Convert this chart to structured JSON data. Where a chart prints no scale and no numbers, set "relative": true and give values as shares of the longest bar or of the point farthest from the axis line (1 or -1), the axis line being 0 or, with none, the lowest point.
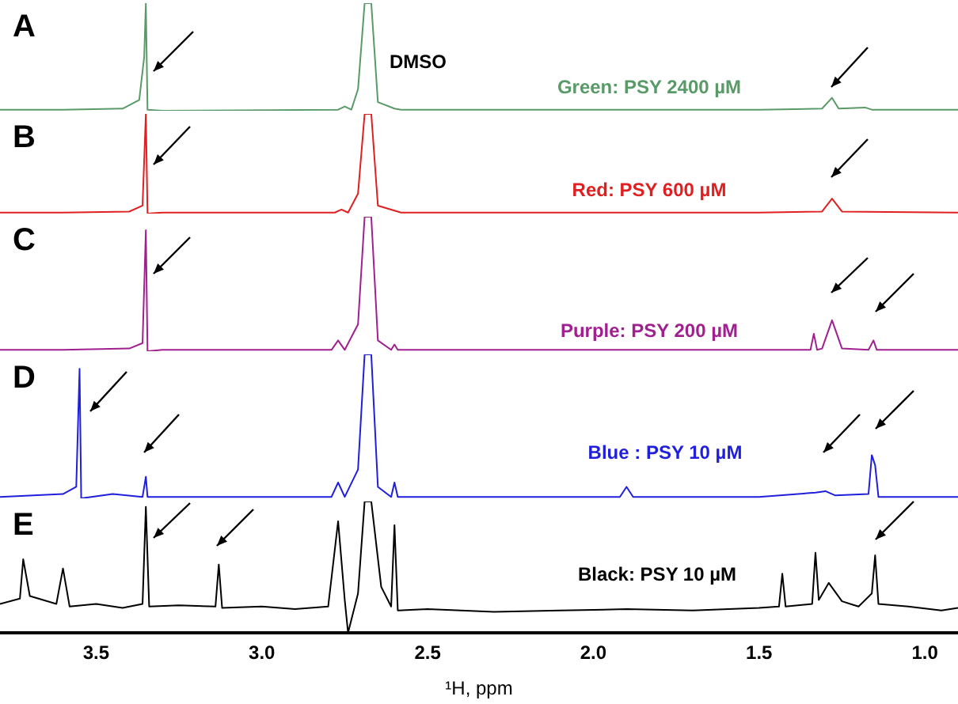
{
  "chart_data": [
    {
      "type": "line",
      "title": "A",
      "relative": true,
      "xlim": [
        3.79,
        0.9
      ],
      "tick_labels": false,
      "legend": false,
      "annotations": [
        "DMSO"
      ],
      "x": [
        3.79,
        3.6,
        3.42,
        3.37,
        3.355,
        3.35,
        3.345,
        3.3,
        2.77,
        2.75,
        2.73,
        2.71,
        2.69,
        2.67,
        2.65,
        2.6,
        2.58,
        1.5,
        1.31,
        1.28,
        1.26,
        1.18,
        1.16,
        0.9
      ],
      "series": [
        {
          "name": "Green: PSY 2400 µM",
          "color": "#5a9a68",
          "values": [
            0.01,
            0.01,
            0.02,
            0.1,
            0.5,
            1,
            0.01,
            0,
            0.01,
            0.04,
            0.01,
            0.2,
            1,
            1,
            0.08,
            0.02,
            0.01,
            0.01,
            0.02,
            0.12,
            0.02,
            0.03,
            0.01,
            0.01
          ]
        }
      ]
    },
    {
      "type": "line",
      "title": "B",
      "relative": true,
      "xlim": [
        3.79,
        0.9
      ],
      "tick_labels": false,
      "legend": false,
      "x": [
        3.79,
        3.6,
        3.4,
        3.36,
        3.35,
        3.345,
        3.3,
        2.78,
        2.76,
        2.74,
        2.71,
        2.69,
        2.67,
        2.65,
        2.6,
        2.58,
        1.5,
        1.31,
        1.28,
        1.25,
        0.9
      ],
      "series": [
        {
          "name": "Red: PSY 600 µM",
          "color": "#e02020",
          "values": [
            0.01,
            0.01,
            0.02,
            0.08,
            1,
            0,
            0.01,
            0.01,
            0.04,
            0.01,
            0.2,
            1,
            1,
            0.08,
            0.03,
            0.01,
            0.01,
            0.02,
            0.15,
            0.02,
            0.01
          ]
        }
      ]
    },
    {
      "type": "line",
      "title": "C",
      "relative": true,
      "xlim": [
        3.79,
        0.9
      ],
      "tick_labels": false,
      "legend": false,
      "x": [
        3.79,
        3.6,
        3.4,
        3.36,
        3.35,
        3.345,
        3.3,
        2.79,
        2.77,
        2.75,
        2.71,
        2.69,
        2.67,
        2.65,
        2.61,
        2.6,
        2.59,
        1.5,
        1.345,
        1.335,
        1.325,
        1.31,
        1.28,
        1.25,
        1.17,
        1.155,
        1.145,
        1.13,
        0.9
      ],
      "series": [
        {
          "name": "Purple: PSY 200 µM",
          "color": "#a0208f",
          "values": [
            0.01,
            0.01,
            0.02,
            0.06,
            0.9,
            0,
            0.01,
            0.01,
            0.08,
            0.01,
            0.2,
            1,
            1,
            0.08,
            0.01,
            0.05,
            0.01,
            0.01,
            0.01,
            0.13,
            0.01,
            0.02,
            0.23,
            0.02,
            0.01,
            0.08,
            0.01,
            0.01,
            0.01
          ]
        }
      ]
    },
    {
      "type": "line",
      "title": "D",
      "relative": true,
      "xlim": [
        3.79,
        0.9
      ],
      "tick_labels": false,
      "legend": false,
      "x": [
        3.79,
        3.6,
        3.56,
        3.55,
        3.545,
        3.45,
        3.36,
        3.35,
        3.345,
        2.79,
        2.77,
        2.75,
        2.71,
        2.69,
        2.67,
        2.65,
        2.61,
        2.6,
        2.59,
        1.92,
        1.9,
        1.88,
        1.5,
        1.33,
        1.3,
        1.27,
        1.17,
        1.16,
        1.15,
        1.14,
        0.9
      ],
      "series": [
        {
          "name": "Blue : PSY 10 µM",
          "color": "#1f1fdc",
          "values": [
            0.01,
            0.03,
            0.08,
            0.9,
            0,
            0.03,
            0.01,
            0.15,
            0.01,
            0.01,
            0.11,
            0.01,
            0.2,
            1,
            1,
            0.08,
            0.01,
            0.11,
            0.01,
            0.01,
            0.08,
            0.01,
            0.01,
            0.04,
            0.05,
            0.02,
            0.03,
            0.3,
            0.23,
            0.01,
            0.01
          ]
        }
      ]
    },
    {
      "type": "line",
      "title": "E",
      "relative": true,
      "xlim": [
        3.79,
        0.9
      ],
      "xticks": [
        {
          "value": 3.5,
          "label": "3.5"
        },
        {
          "value": 3.0,
          "label": "3.0"
        },
        {
          "value": 2.5,
          "label": "2.5"
        },
        {
          "value": 2.0,
          "label": "2.0"
        },
        {
          "value": 1.5,
          "label": "1.5"
        },
        {
          "value": 1.0,
          "label": "1.0"
        }
      ],
      "tick_labels": "x",
      "xlabel": "¹H, ppm",
      "legend": false,
      "x": [
        3.79,
        3.73,
        3.72,
        3.7,
        3.62,
        3.6,
        3.58,
        3.5,
        3.42,
        3.36,
        3.35,
        3.34,
        3.25,
        3.14,
        3.13,
        3.12,
        3.0,
        2.9,
        2.8,
        2.77,
        2.75,
        2.74,
        2.71,
        2.69,
        2.67,
        2.64,
        2.61,
        2.6,
        2.59,
        2.5,
        2.3,
        2.1,
        1.9,
        1.7,
        1.5,
        1.44,
        1.43,
        1.42,
        1.34,
        1.33,
        1.32,
        1.29,
        1.25,
        1.2,
        1.16,
        1.15,
        1.14,
        1.05,
        0.95,
        0.9
      ],
      "series": [
        {
          "name": "Black: PSY 10 µM",
          "color": "#000000",
          "values": [
            0.22,
            0.26,
            0.56,
            0.28,
            0.22,
            0.49,
            0.2,
            0.22,
            0.19,
            0.22,
            0.96,
            0.2,
            0.21,
            0.2,
            0.52,
            0.19,
            0.2,
            0.18,
            0.2,
            0.85,
            0.25,
            0,
            0.3,
            1,
            1,
            0.35,
            0.2,
            0.82,
            0.17,
            0.18,
            0.16,
            0.17,
            0.18,
            0.17,
            0.19,
            0.2,
            0.45,
            0.2,
            0.22,
            0.61,
            0.25,
            0.38,
            0.24,
            0.2,
            0.3,
            0.59,
            0.22,
            0.2,
            0.17,
            0.19
          ]
        }
      ]
    }
  ]
}
